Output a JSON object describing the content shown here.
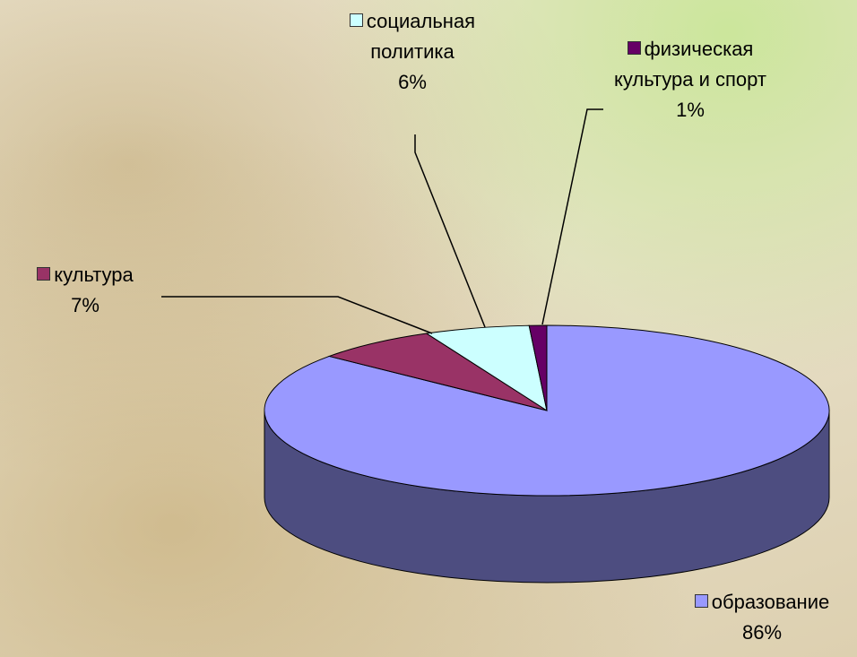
{
  "chart_data": {
    "type": "pie3d",
    "categories": [
      "образование",
      "культура",
      "социальная политика",
      "физическая культура и спорт"
    ],
    "values": [
      86,
      7,
      6,
      1
    ],
    "value_labels": [
      "86%",
      "7%",
      "6%",
      "1%"
    ],
    "colors": [
      "#9999ff",
      "#993366",
      "#ccffff",
      "#660066"
    ]
  }
}
